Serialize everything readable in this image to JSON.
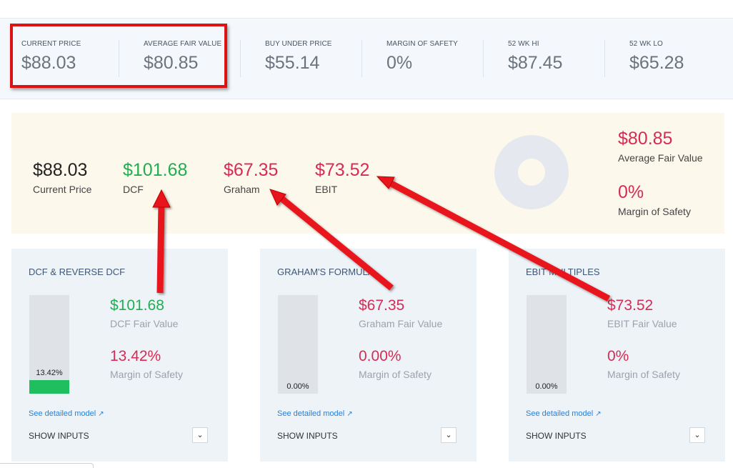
{
  "metrics": [
    {
      "label": "CURRENT PRICE",
      "value": "$88.03",
      "color": "#2a84d3"
    },
    {
      "label": "AVERAGE FAIR VALUE",
      "value": "$80.85",
      "color": "#d62c54"
    },
    {
      "label": "BUY UNDER PRICE",
      "value": "$55.14",
      "color": "#6c737d"
    },
    {
      "label": "MARGIN OF SAFETY",
      "value": "0%",
      "color": "#d62c54"
    },
    {
      "label": "52 WK HI",
      "value": "$87.45",
      "color": "#6c737d"
    },
    {
      "label": "52 WK LO",
      "value": "$65.28",
      "color": "#6c737d"
    }
  ],
  "summary": {
    "items": [
      {
        "value": "$88.03",
        "label": "Current Price"
      },
      {
        "value": "$101.68",
        "label": "DCF"
      },
      {
        "value": "$67.35",
        "label": "Graham"
      },
      {
        "value": "$73.52",
        "label": "EBIT"
      }
    ],
    "avg_value": "$80.85",
    "avg_label": "Average Fair Value",
    "mos_value": "0%",
    "mos_label": "Margin of Safety"
  },
  "cards": [
    {
      "title": "DCF & REVERSE DCF",
      "fair_value": "$101.68",
      "fair_value_label": "DCF Fair Value",
      "mos_value": "13.42%",
      "mos_label": "Margin of Safety",
      "bar_label": "13.42%",
      "bar_fraction": 0.1342,
      "link": "See detailed model",
      "show_inputs": "SHOW INPUTS"
    },
    {
      "title": "GRAHAM'S FORMULA",
      "fair_value": "$67.35",
      "fair_value_label": "Graham Fair Value",
      "mos_value": "0.00%",
      "mos_label": "Margin of Safety",
      "bar_label": "0.00%",
      "bar_fraction": 0,
      "link": "See detailed model",
      "show_inputs": "SHOW INPUTS"
    },
    {
      "title": "EBIT MULTIPLES",
      "fair_value": "$73.52",
      "fair_value_label": "EBIT Fair Value",
      "mos_value": "0%",
      "mos_label": "Margin of Safety",
      "bar_label": "0.00%",
      "bar_fraction": 0,
      "link": "See detailed model",
      "show_inputs": "SHOW INPUTS"
    }
  ],
  "icons": {
    "external_link": "external-link-icon",
    "chevron": "chevron-down-icon"
  },
  "colors": {
    "highlight": "#dd1313",
    "positive": "#1fae52",
    "negative": "#d62c54",
    "accent": "#2a84d3"
  }
}
